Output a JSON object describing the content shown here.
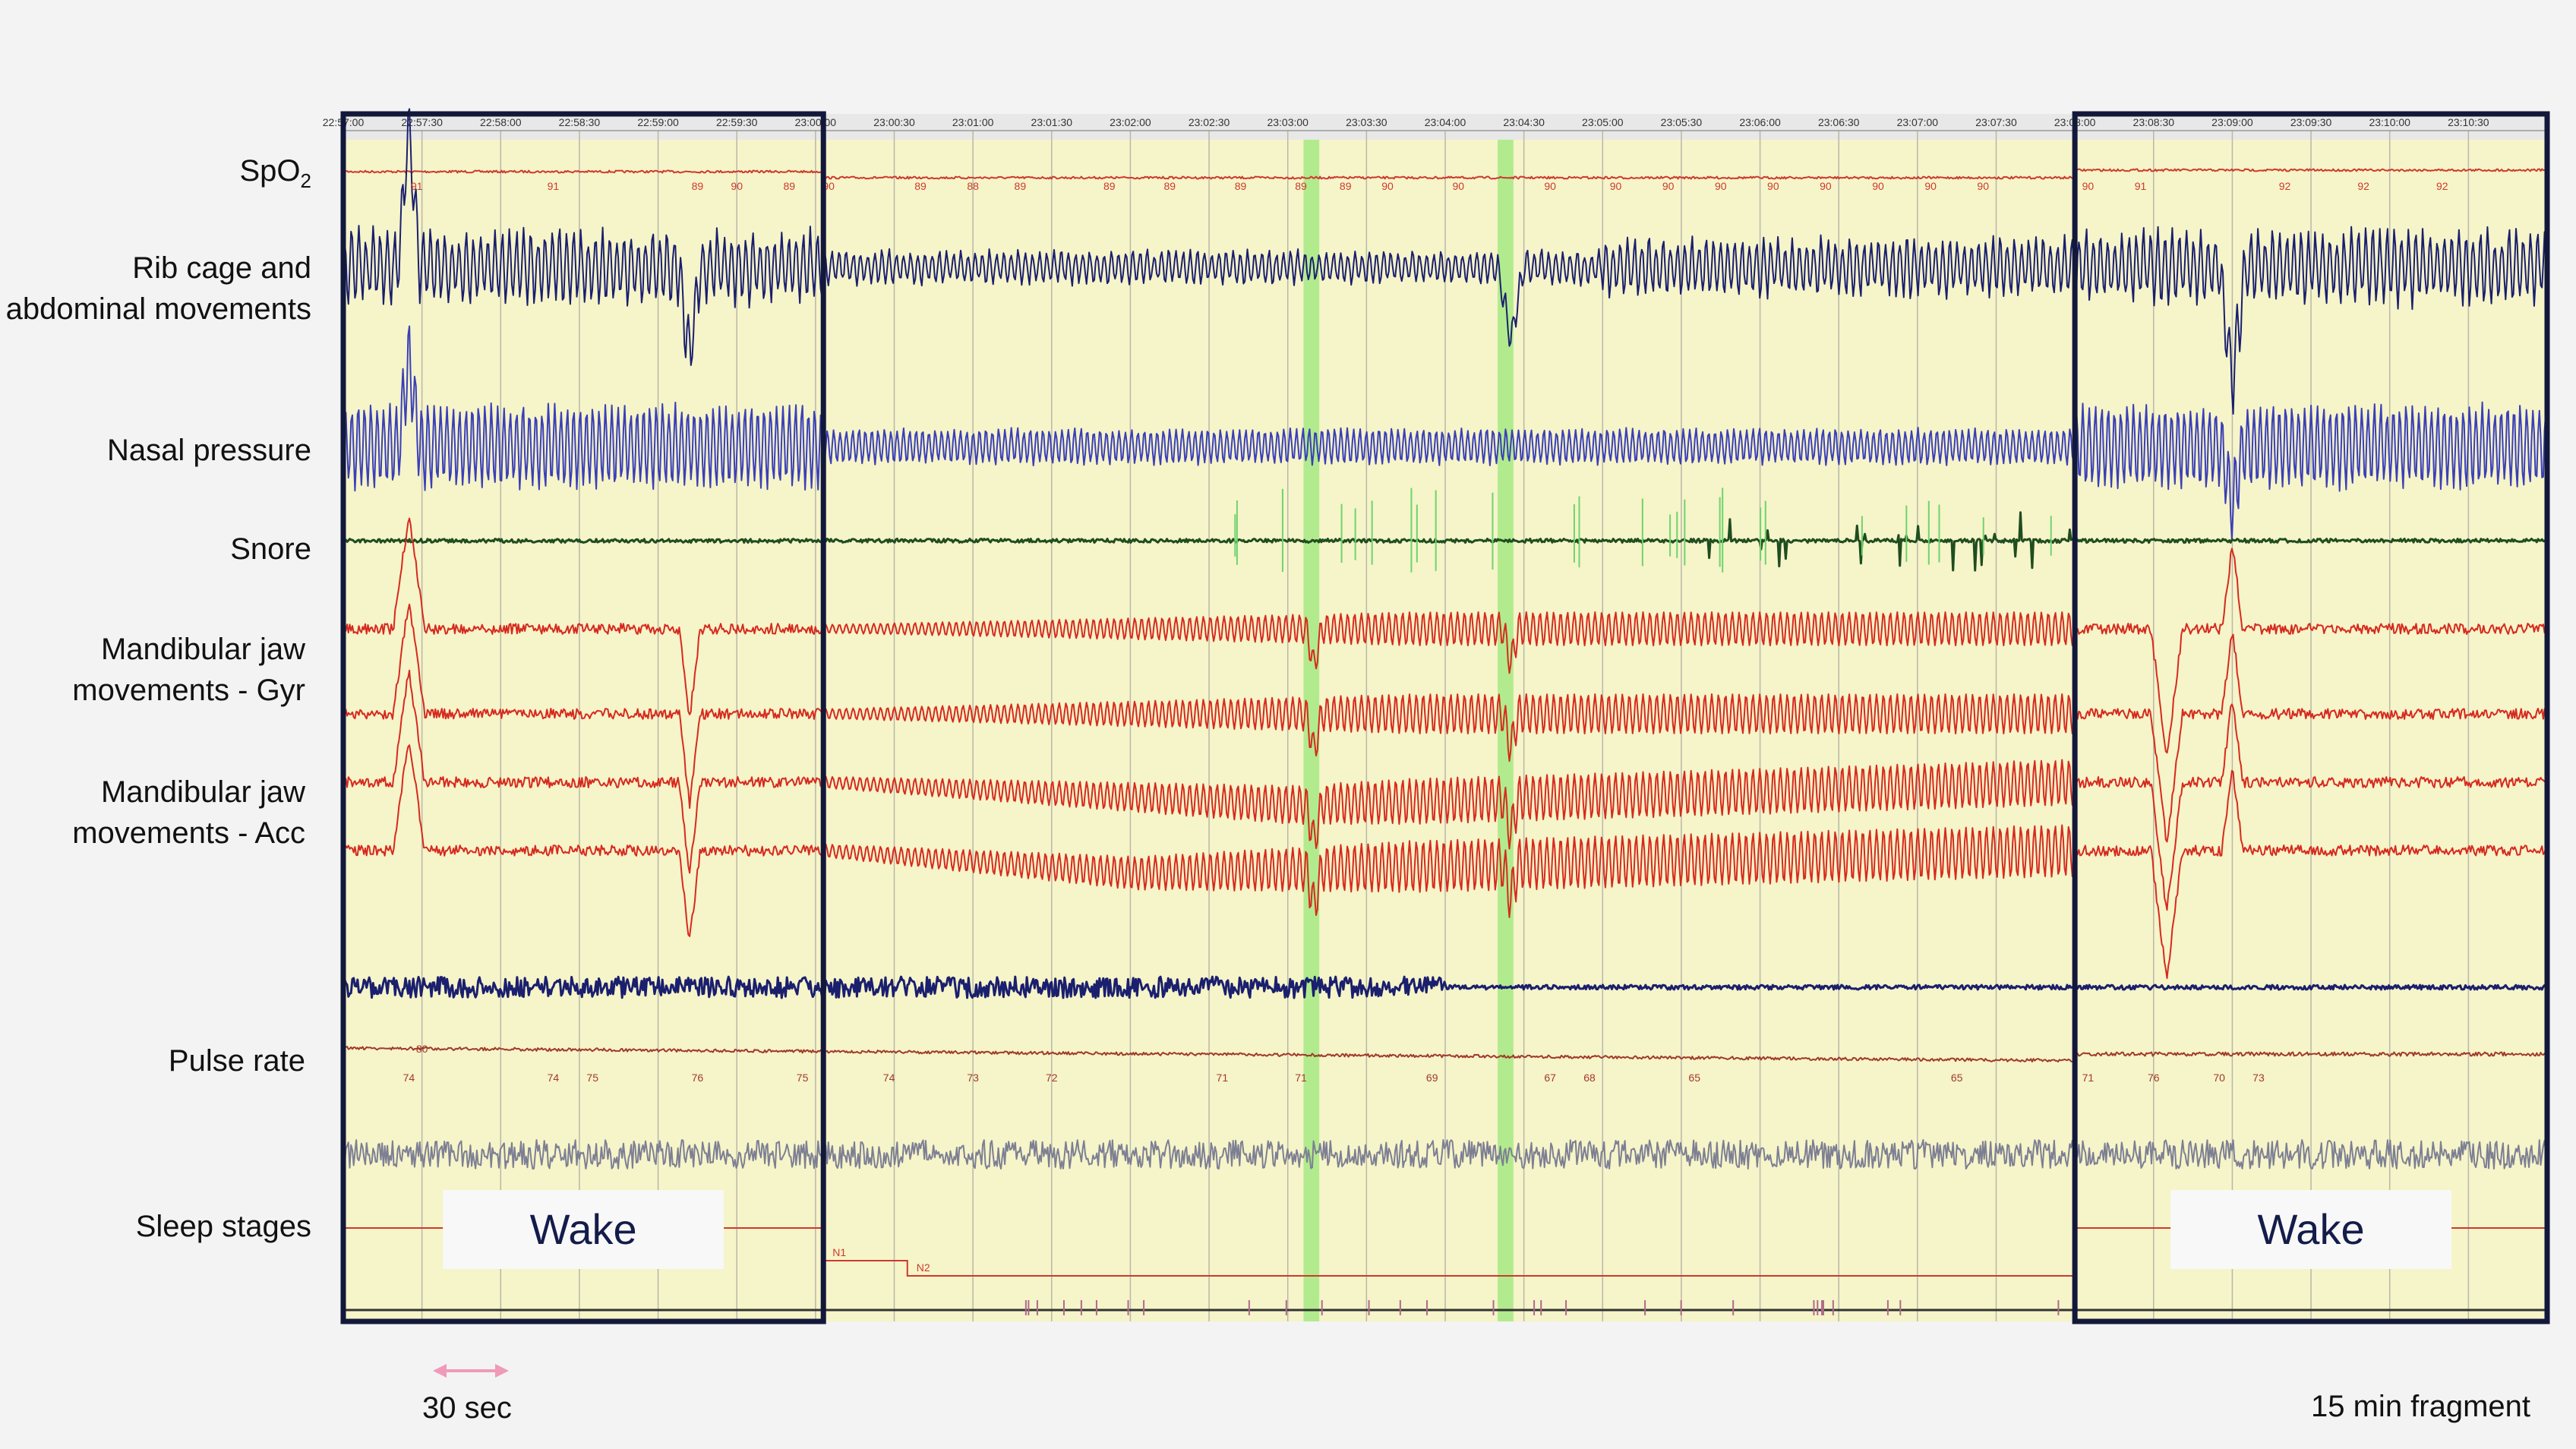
{
  "channel_labels": {
    "spo2": "SpO",
    "spo2_sub": "2",
    "rib_line1": "Rib cage and",
    "rib_line2": "abdominal movements",
    "nasal": "Nasal pressure",
    "snore": "Snore",
    "gyr_line1": "Mandibular jaw",
    "gyr_line2": "movements - Gyr",
    "acc_line1": "Mandibular jaw",
    "acc_line2": "movements - Acc",
    "pulse": "Pulse rate",
    "sleep": "Sleep stages"
  },
  "scale_label": "30 sec",
  "fragment_label": "15 min fragment",
  "colors": {
    "panel_bg": "#f6f4c9",
    "spo2": "#cc3a2e",
    "rib": "#1a1f6e",
    "nasal": "#3a3fb8",
    "snore": "#1f4d1f",
    "jaw": "#d62a1f",
    "pulse": "#a03a2a",
    "pulse_gray": "#7d7f93",
    "highlight": "#9be87a",
    "wake_box": "#12183a",
    "scale_arrow": "#ef9ab8"
  },
  "chart_data": {
    "type": "line",
    "x_ticks": [
      "22:57:00",
      "22:57:30",
      "22:58:00",
      "22:58:30",
      "22:59:00",
      "22:59:30",
      "23:00:00",
      "23:00:30",
      "23:01:00",
      "23:01:30",
      "23:02:00",
      "23:02:30",
      "23:03:00",
      "23:03:30",
      "23:04:00",
      "23:04:30",
      "23:05:00",
      "23:05:30",
      "23:06:00",
      "23:06:30",
      "23:07:00",
      "23:07:30",
      "23:08:00",
      "23:08:30",
      "23:09:00",
      "23:09:30",
      "23:10:00",
      "23:10:30"
    ],
    "x_range": [
      "22:57:00",
      "23:11:00"
    ],
    "grid": true,
    "spo2_labels": [
      {
        "t": "22:57:28",
        "v": 91
      },
      {
        "t": "22:58:20",
        "v": 91
      },
      {
        "t": "22:59:15",
        "v": 89
      },
      {
        "t": "22:59:30",
        "v": 90
      },
      {
        "t": "22:59:50",
        "v": 89
      },
      {
        "t": "23:00:05",
        "v": 90
      },
      {
        "t": "23:00:40",
        "v": 89
      },
      {
        "t": "23:01:00",
        "v": 88
      },
      {
        "t": "23:01:18",
        "v": 89
      },
      {
        "t": "23:01:52",
        "v": 89
      },
      {
        "t": "23:02:15",
        "v": 89
      },
      {
        "t": "23:02:42",
        "v": 89
      },
      {
        "t": "23:03:05",
        "v": 89
      },
      {
        "t": "23:03:22",
        "v": 89
      },
      {
        "t": "23:03:38",
        "v": 90
      },
      {
        "t": "23:04:05",
        "v": 90
      },
      {
        "t": "23:04:40",
        "v": 90
      },
      {
        "t": "23:05:05",
        "v": 90
      },
      {
        "t": "23:05:25",
        "v": 90
      },
      {
        "t": "23:05:45",
        "v": 90
      },
      {
        "t": "23:06:05",
        "v": 90
      },
      {
        "t": "23:06:25",
        "v": 90
      },
      {
        "t": "23:06:45",
        "v": 90
      },
      {
        "t": "23:07:05",
        "v": 90
      },
      {
        "t": "23:07:25",
        "v": 90
      },
      {
        "t": "23:08:05",
        "v": 90
      },
      {
        "t": "23:08:25",
        "v": 91
      },
      {
        "t": "23:09:20",
        "v": 92
      },
      {
        "t": "23:09:50",
        "v": 92
      },
      {
        "t": "23:10:20",
        "v": 92
      }
    ],
    "pulse_labels": [
      {
        "t": "22:57:30",
        "v": 80
      },
      {
        "t": "22:57:25",
        "v": 74
      },
      {
        "t": "22:58:20",
        "v": 74
      },
      {
        "t": "22:58:35",
        "v": 75
      },
      {
        "t": "22:59:15",
        "v": 76
      },
      {
        "t": "22:59:55",
        "v": 75
      },
      {
        "t": "23:00:28",
        "v": 74
      },
      {
        "t": "23:01:00",
        "v": 73
      },
      {
        "t": "23:01:30",
        "v": 72
      },
      {
        "t": "23:02:35",
        "v": 71
      },
      {
        "t": "23:03:05",
        "v": 71
      },
      {
        "t": "23:03:55",
        "v": 69
      },
      {
        "t": "23:04:40",
        "v": 67
      },
      {
        "t": "23:04:55",
        "v": 68
      },
      {
        "t": "23:05:35",
        "v": 65
      },
      {
        "t": "23:07:15",
        "v": 65
      },
      {
        "t": "23:08:05",
        "v": 71
      },
      {
        "t": "23:08:30",
        "v": 76
      },
      {
        "t": "23:08:55",
        "v": 70
      },
      {
        "t": "23:09:10",
        "v": 73
      }
    ],
    "sleep_stages": [
      {
        "start": "22:57:00",
        "end": "23:00:03",
        "stage": "Wake"
      },
      {
        "start": "23:00:03",
        "end": "23:00:35",
        "stage": "N1"
      },
      {
        "start": "23:00:35",
        "end": "23:08:00",
        "stage": "N2"
      },
      {
        "start": "23:08:00",
        "end": "23:11:00",
        "stage": "Wake"
      }
    ],
    "wake_periods": [
      {
        "start": "22:57:00",
        "end": "23:00:03",
        "label": "Wake"
      },
      {
        "start": "23:08:00",
        "end": "23:11:00",
        "label": "Wake"
      }
    ],
    "highlighted_epochs": [
      {
        "start": "23:03:06",
        "end": "23:03:12"
      },
      {
        "start": "23:04:20",
        "end": "23:04:26"
      }
    ]
  }
}
